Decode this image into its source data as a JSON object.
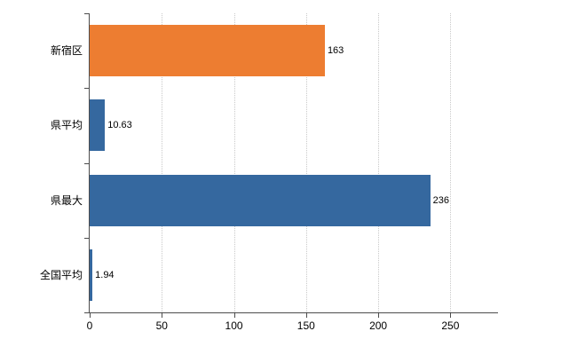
{
  "chart_data": {
    "type": "bar",
    "orientation": "horizontal",
    "title": "",
    "xlabel": "",
    "ylabel": "",
    "categories": [
      "新宿区",
      "県平均",
      "県最大",
      "全国平均"
    ],
    "values": [
      163,
      10.63,
      236,
      1.94
    ],
    "value_labels": [
      "163",
      "10.63",
      "236",
      "1.94"
    ],
    "bar_colors": [
      "#ED7D31",
      "#35689F",
      "#35689F",
      "#35689F"
    ],
    "x_ticks": [
      0,
      50,
      100,
      150,
      200,
      250
    ],
    "x_tick_labels": [
      "0",
      "50",
      "100",
      "150",
      "200",
      "250"
    ],
    "xlim": [
      0,
      283
    ],
    "grid": "vertical-dotted",
    "legend": "none",
    "background_color": "#ffffff",
    "axis_color": "#4d4d4d",
    "grid_color": "#c9c9c9"
  }
}
